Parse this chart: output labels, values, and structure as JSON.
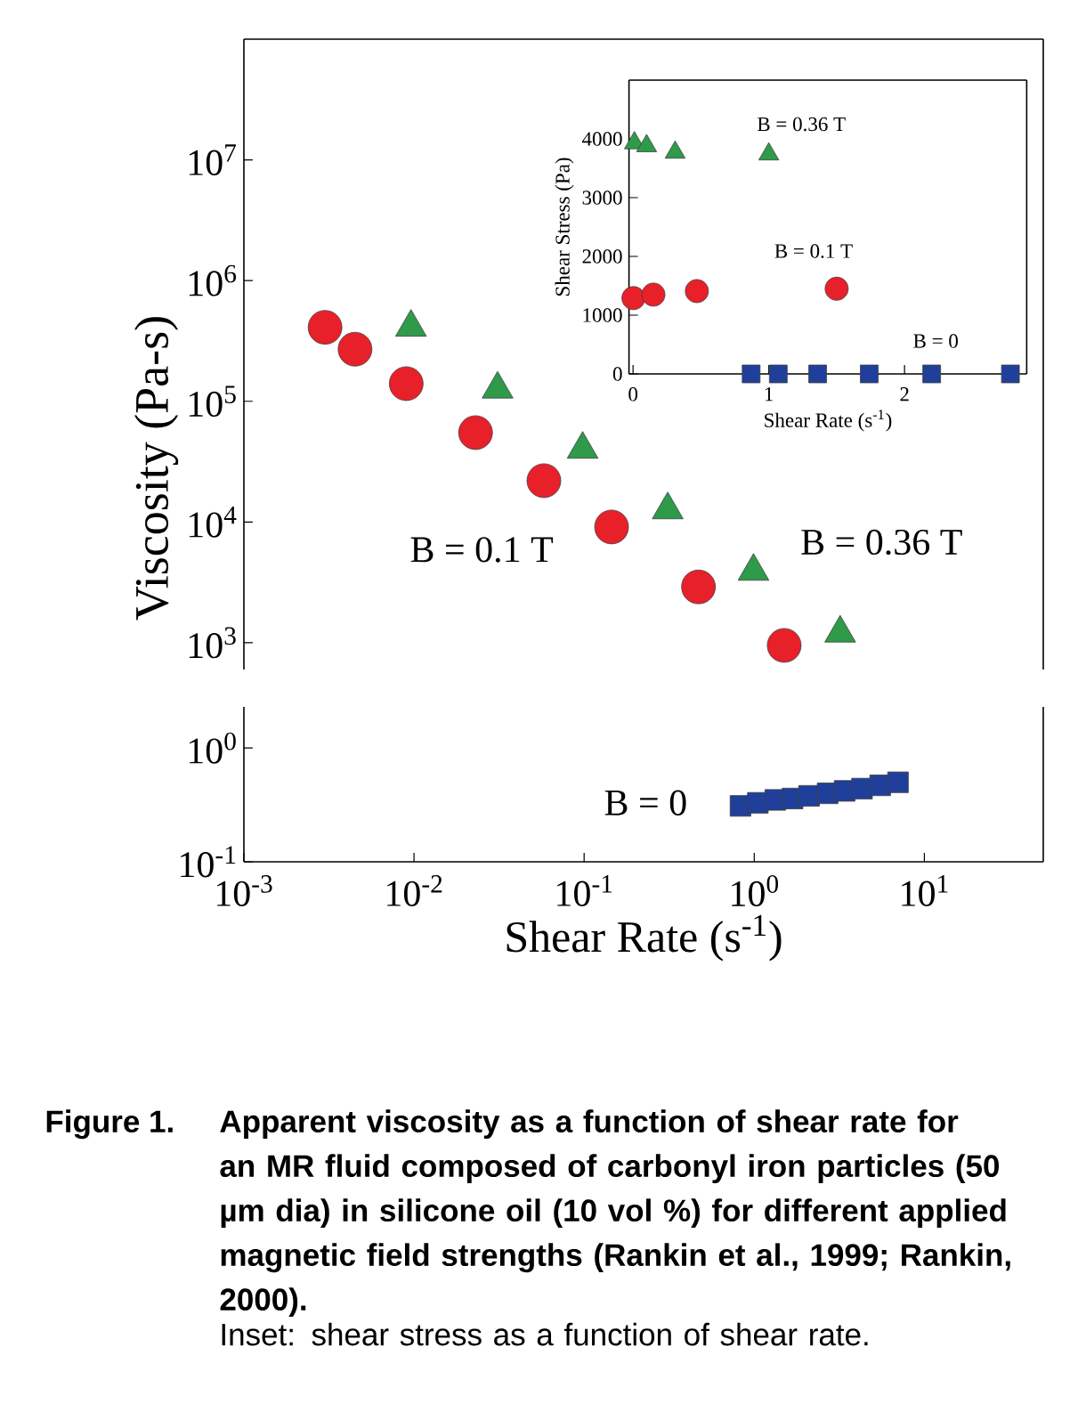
{
  "chart_data": [
    {
      "type": "scatter",
      "log": "xy",
      "xlim": [
        0.001,
        50
      ],
      "ylim": [
        600,
        100000000
      ],
      "tick_labels": "y",
      "ylabel": "Viscosity (Pa-s)",
      "xticks": [
        0.001,
        0.01,
        0.1,
        1,
        10
      ],
      "yticks": [
        {
          "value": 1000,
          "label": "10$^{3}$"
        },
        {
          "value": 10000,
          "label": "10$^{4}$"
        },
        {
          "value": 100000,
          "label": "10$^{5}$"
        },
        {
          "value": 1000000,
          "label": "10$^{6}$"
        },
        {
          "value": 10000000,
          "label": "10$^{7}$"
        }
      ],
      "series": [
        {
          "name": "B = 0.1 T",
          "color": "#e8202a",
          "marker": "circle",
          "x": [
            0.003,
            0.0045,
            0.009,
            0.023,
            0.058,
            0.145,
            0.47,
            1.5
          ],
          "values": [
            410000,
            270000,
            140000,
            55000,
            22000,
            9100,
            2900,
            950
          ]
        },
        {
          "name": "B = 0.36 T",
          "color": "#2e9a4a",
          "marker": "triangle",
          "x": [
            0.0096,
            0.031,
            0.098,
            0.31,
            0.99,
            3.2
          ],
          "values": [
            410000,
            126000,
            40000,
            12600,
            3900,
            1200
          ]
        }
      ]
    },
    {
      "type": "scatter",
      "log": "xy",
      "xlim": [
        0.001,
        50
      ],
      "ylim": [
        0.1,
        2.3
      ],
      "xlabel": "Shear Rate (s$^{-1}$)",
      "xticks": [
        {
          "value": 0.001,
          "label": "10$^{-3}$"
        },
        {
          "value": 0.01,
          "label": "10$^{-2}$"
        },
        {
          "value": 0.1,
          "label": "10$^{-1}$"
        },
        {
          "value": 1,
          "label": "10$^{0}$"
        },
        {
          "value": 10,
          "label": "10$^{1}$"
        }
      ],
      "yticks": [
        {
          "value": 0.1,
          "label": "10$^{-1}$"
        },
        {
          "value": 1,
          "label": "10$^{0}$"
        }
      ],
      "series": [
        {
          "name": "B = 0",
          "color": "#1f3f9a",
          "marker": "square",
          "x": [
            0.83,
            1.05,
            1.33,
            1.68,
            2.1,
            2.7,
            3.4,
            4.3,
            5.5,
            7.0
          ],
          "values": [
            0.31,
            0.33,
            0.35,
            0.36,
            0.38,
            0.4,
            0.42,
            0.44,
            0.47,
            0.5
          ]
        }
      ],
      "annotations": [
        "Figure 1.",
        "Apparent viscosity as a function of shear rate for an MR fluid composed of carbonyl iron particles (50 µm dia) in silicone oil (10 vol %) for different applied magnetic field strengths (Rankin et al., 1999; Rankin, 2000).",
        "Inset: shear stress as a function of shear rate."
      ]
    },
    {
      "type": "scatter",
      "xlim": [
        -0.03,
        2.9
      ],
      "ylim": [
        0,
        5000
      ],
      "xlabel": "Shear Rate (s$^{-1}$)",
      "ylabel": "Shear Stress (Pa)",
      "xticks": [
        0,
        1,
        2
      ],
      "yticks": [
        0,
        1000,
        2000,
        3000,
        4000
      ],
      "series": [
        {
          "name": "B = 0.1 T",
          "color": "#e8202a",
          "marker": "circle",
          "x": [
            0.003,
            0.15,
            0.47,
            1.5
          ],
          "values": [
            1290,
            1350,
            1410,
            1450
          ]
        },
        {
          "name": "B = 0.36 T",
          "color": "#2e9a4a",
          "marker": "triangle",
          "x": [
            0.01,
            0.1,
            0.31,
            1.0
          ],
          "values": [
            3930,
            3880,
            3770,
            3740
          ]
        },
        {
          "name": "B = 0",
          "color": "#1f3f9a",
          "marker": "square",
          "x": [
            0.87,
            1.07,
            1.36,
            1.74,
            2.2,
            2.78
          ],
          "values": [
            0,
            0,
            0,
            0,
            0,
            0
          ]
        }
      ]
    }
  ]
}
